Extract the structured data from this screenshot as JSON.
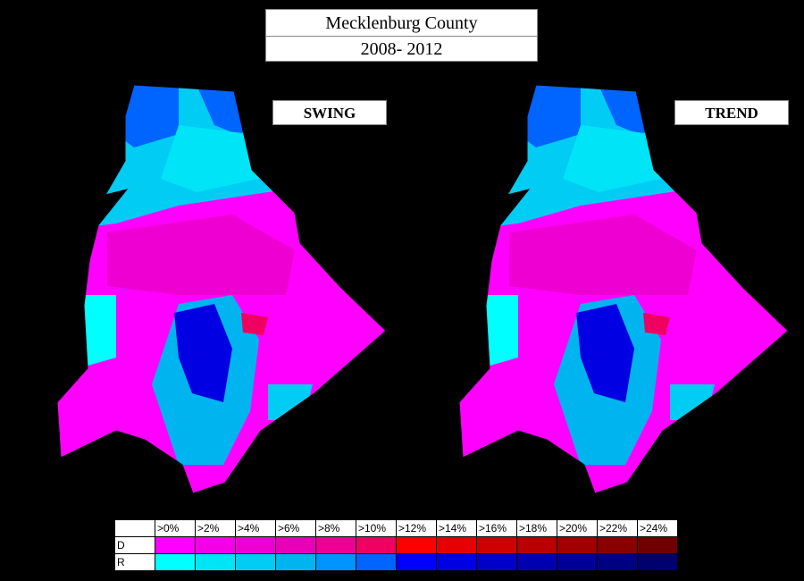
{
  "header": {
    "title": "Mecklenburg County",
    "subtitle": "2008- 2012"
  },
  "maps": [
    {
      "label": "SWING"
    },
    {
      "label": "TREND"
    }
  ],
  "legend": {
    "thresholds": [
      ">0%",
      ">2%",
      ">4%",
      ">6%",
      ">8%",
      ">10%",
      ">12%",
      ">14%",
      ">16%",
      ">18%",
      ">20%",
      ">22%",
      ">24%"
    ],
    "rows": [
      {
        "label": "D",
        "colors": [
          "#ff00ff",
          "#f500e6",
          "#ee00d2",
          "#e800b8",
          "#ee0095",
          "#f00060",
          "#ff0000",
          "#e60000",
          "#cf0000",
          "#b80000",
          "#a00000",
          "#880000",
          "#700000"
        ]
      },
      {
        "label": "R",
        "colors": [
          "#00ffff",
          "#00e4f8",
          "#00ccf4",
          "#00b4f0",
          "#0094ff",
          "#0064ff",
          "#0000ff",
          "#0000e2",
          "#0000c8",
          "#0000b0",
          "#000098",
          "#000082",
          "#00006e"
        ]
      }
    ]
  }
}
